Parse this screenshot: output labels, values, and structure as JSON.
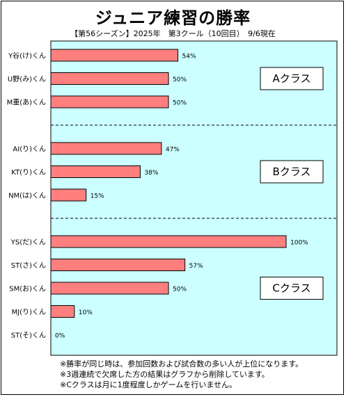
{
  "title": "ジュニア練習の勝率",
  "subtitle": "【第56シーズン】2025年　第3クール（10回目）　9/6現在",
  "chart_data": {
    "type": "bar",
    "orientation": "horizontal",
    "categories": [
      "Y谷(け)くん",
      "U野(み)くん",
      "M重(あ)くん",
      "AI(り)くん",
      "KT(り)くん",
      "NM(は)くん",
      "YS(だ)くん",
      "ST(さ)くん",
      "SM(お)くん",
      "MJ(り)くん",
      "ST(そ)くん"
    ],
    "values": [
      54,
      50,
      50,
      47,
      38,
      15,
      100,
      57,
      50,
      10,
      0
    ],
    "value_labels": [
      "54%",
      "50%",
      "50%",
      "47%",
      "38%",
      "15%",
      "100%",
      "57%",
      "50%",
      "10%",
      "0%"
    ],
    "xlim": [
      0,
      100
    ],
    "unit": "%",
    "groups": [
      {
        "label": "Aクラス",
        "start": 0,
        "count": 3
      },
      {
        "label": "Bクラス",
        "start": 3,
        "count": 3
      },
      {
        "label": "Cクラス",
        "start": 6,
        "count": 5
      }
    ],
    "grid": false,
    "legend": "none"
  },
  "notes": [
    "※勝率が同じ時は、参加回数および試合数の多い人が上位になります。",
    "※3週連続で欠席した方の結果はグラフから削除しています。",
    "※Cクラスは月に1度程度しかゲームを行いません。"
  ],
  "colors": {
    "plot_background": "#CCFFFF",
    "bar_fill": "#FF7F7F",
    "bar_stroke": "#000000"
  }
}
